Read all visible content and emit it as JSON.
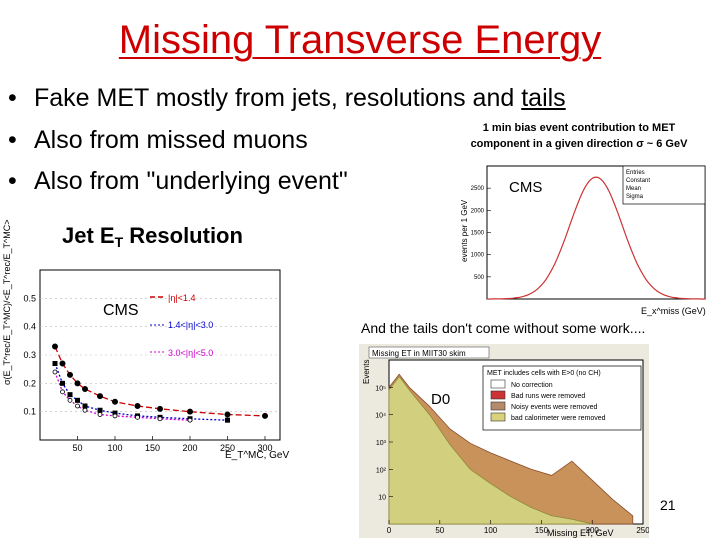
{
  "slide": {
    "title": "Missing Transverse Energy",
    "bullet_mark": "•",
    "bullets": [
      {
        "pre": "Fake MET mostly from jets, resolutions and ",
        "underlined": "tails"
      },
      {
        "pre": "Also from missed muons",
        "underlined": ""
      },
      {
        "pre": "Also from \"underlying event\"",
        "underlined": ""
      }
    ],
    "minbias_caption_line1": "1 min bias event contribution to MET",
    "minbias_caption_line2": "component in a given direction σ ~ 6 GeV",
    "tails_note": "And the tails don't come without some work....",
    "page_number": "21"
  },
  "figures": {
    "jet_resolution": {
      "title": "Jet E",
      "title_sub": "T",
      "title_rest": " Resolution",
      "experiment": "CMS",
      "legend": [
        "|η|<1.4",
        "1.4<|η|<3.0",
        "3.0<|η|<5.0"
      ],
      "xlabel": "E_T^MC, GeV",
      "ylabel": "σ(E_T^rec/E_T^MC)/<E_T^rec/E_T^MC>",
      "colors": {
        "barrel": "#cc0000",
        "endcap": "#0000cc",
        "forward": "#cc00cc",
        "points": "#000000"
      }
    },
    "minbias_met": {
      "experiment": "CMS",
      "ylabel": "events per 1 GeV",
      "xlabel": "E_x^miss (GeV)",
      "stats_labels": [
        "Entries",
        "Constant",
        "Mean",
        "Sigma"
      ],
      "color": "#cc3333"
    },
    "d0_met": {
      "experiment": "D0",
      "title": "Missing ET in MIIT30 skim",
      "ylabel": "Events",
      "xlabel": "Missing ET, GeV",
      "legend_header": "MET includes cells with E>0 (no CH)",
      "legend": [
        "No correction",
        "Bad runs were removed",
        "Noisy events were removed",
        "bad calorimeter were removed"
      ],
      "legend_colors": [
        "#ffffff",
        "#cc3333",
        "#b58a6a",
        "#d8d27a"
      ],
      "fill_colors": {
        "back": "#c8925a",
        "front": "#d2cf7e"
      }
    }
  },
  "chart_data": [
    {
      "type": "scatter",
      "title": "Jet ET Resolution",
      "xlabel": "E_T^MC, GeV",
      "ylabel": "σ(E_T^rec/E_T^MC)/<E_T^rec/E_T^MC>",
      "xlim": [
        0,
        320
      ],
      "ylim": [
        0,
        0.6
      ],
      "xticks": [
        50,
        100,
        150,
        200,
        250,
        300
      ],
      "yticks": [
        0.1,
        0.2,
        0.3,
        0.4,
        0.5
      ],
      "series": [
        {
          "name": "|η|<1.4",
          "x": [
            20,
            30,
            40,
            50,
            60,
            80,
            100,
            130,
            160,
            200,
            250,
            300
          ],
          "y": [
            0.33,
            0.27,
            0.23,
            0.2,
            0.18,
            0.155,
            0.135,
            0.12,
            0.11,
            0.1,
            0.09,
            0.085
          ]
        },
        {
          "name": "1.4<|η|<3.0",
          "x": [
            20,
            30,
            40,
            50,
            60,
            80,
            100,
            130,
            160,
            200,
            250
          ],
          "y": [
            0.27,
            0.2,
            0.16,
            0.14,
            0.12,
            0.105,
            0.095,
            0.085,
            0.08,
            0.075,
            0.07
          ]
        },
        {
          "name": "3.0<|η|<5.0",
          "x": [
            20,
            30,
            40,
            50,
            60,
            80,
            100,
            130,
            160,
            200
          ],
          "y": [
            0.24,
            0.17,
            0.14,
            0.12,
            0.105,
            0.09,
            0.085,
            0.08,
            0.075,
            0.07
          ]
        }
      ]
    },
    {
      "type": "line",
      "title": "1 min bias event contribution to MET",
      "xlabel": "E_x^miss (GeV)",
      "ylabel": "events per 1 GeV",
      "xlim": [
        -25,
        25
      ],
      "ylim": [
        0,
        3000
      ],
      "yticks": [
        500,
        1000,
        1500,
        2000,
        2500
      ],
      "mean": 0,
      "sigma": 6,
      "peak": 2750
    },
    {
      "type": "area",
      "title": "Missing ET in MIIT30 skim",
      "xlabel": "Missing ET, GeV",
      "ylabel": "Events",
      "xlim": [
        0,
        250
      ],
      "xticks": [
        0,
        50,
        100,
        150,
        200,
        250
      ],
      "yscale": "log",
      "ylim": [
        1,
        1000000
      ],
      "ytick_labels": [
        "10",
        "10²",
        "10³",
        "10⁴",
        "10⁵"
      ],
      "series": [
        {
          "name": "No correction",
          "x": [
            0,
            10,
            20,
            40,
            60,
            80,
            100,
            120,
            140,
            160,
            180,
            200,
            220,
            240
          ],
          "y": [
            100000,
            300000,
            100000,
            20000,
            3000,
            900,
            400,
            200,
            100,
            60,
            200,
            40,
            8,
            2
          ]
        },
        {
          "name": "bad calorimeter were removed",
          "x": [
            0,
            10,
            20,
            40,
            60,
            80,
            100,
            120,
            140,
            160,
            180,
            200
          ],
          "y": [
            80000,
            250000,
            80000,
            10000,
            800,
            100,
            30,
            10,
            4,
            2,
            1.5,
            1
          ]
        }
      ]
    }
  ]
}
